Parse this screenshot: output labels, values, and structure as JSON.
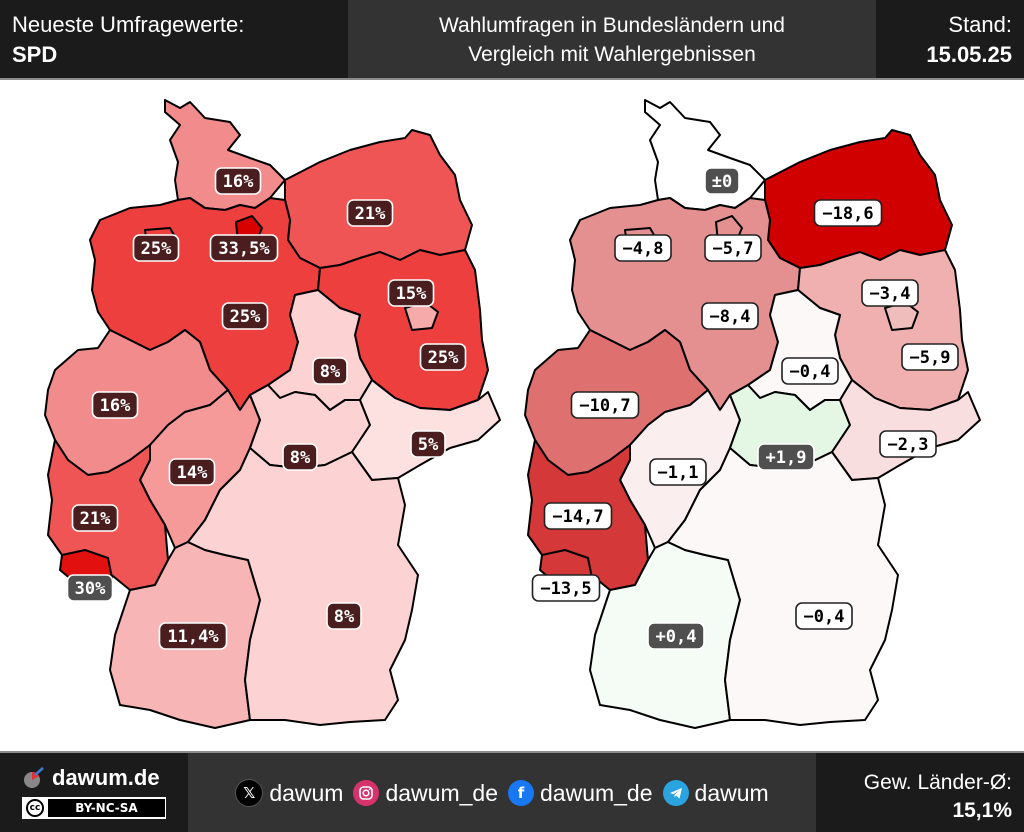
{
  "header": {
    "left_line1": "Neueste Umfragewerte:",
    "left_line2": "SPD",
    "title_line1": "Wahlumfragen in Bundesländern und",
    "title_line2": "Vergleich mit Wahlergebnissen",
    "right_line1": "Stand:",
    "right_line2": "15.05.25"
  },
  "map_left": {
    "labels": [
      {
        "state": "Schleswig-Holstein",
        "text": "16%",
        "style": "dark"
      },
      {
        "state": "Mecklenburg-Vorpommern",
        "text": "21%",
        "style": "dark"
      },
      {
        "state": "Bremen",
        "text": "25%",
        "style": "dark"
      },
      {
        "state": "Hamburg",
        "text": "33,5%",
        "style": "dark"
      },
      {
        "state": "Niedersachsen",
        "text": "25%",
        "style": "dark"
      },
      {
        "state": "Berlin",
        "text": "15%",
        "style": "dark"
      },
      {
        "state": "Brandenburg",
        "text": "25%",
        "style": "dark"
      },
      {
        "state": "Sachsen-Anhalt",
        "text": "8%",
        "style": "dark"
      },
      {
        "state": "Nordrhein-Westfalen",
        "text": "16%",
        "style": "dark"
      },
      {
        "state": "Thüringen",
        "text": "8%",
        "style": "dark"
      },
      {
        "state": "Sachsen",
        "text": "5%",
        "style": "dark"
      },
      {
        "state": "Hessen",
        "text": "14%",
        "style": "dark"
      },
      {
        "state": "Rheinland-Pfalz",
        "text": "21%",
        "style": "dark"
      },
      {
        "state": "Saarland",
        "text": "30%",
        "style": "grey"
      },
      {
        "state": "Bayern",
        "text": "8%",
        "style": "dark"
      },
      {
        "state": "Baden-Württemberg",
        "text": "11,4%",
        "style": "dark"
      }
    ],
    "fills": {
      "Schleswig-Holstein": "#f28b8b",
      "Hamburg": "#d90000",
      "Mecklenburg-Vorpommern": "#f05555",
      "Niedersachsen": "#ee3f3f",
      "Bremen": "#ee3f3f",
      "Berlin": "#f6aaaa",
      "Brandenburg": "#ee3f3f",
      "Sachsen-Anhalt": "#fcd2d2",
      "Nordrhein-Westfalen": "#f28b8b",
      "Hessen": "#f59999",
      "Thüringen": "#fcd2d2",
      "Sachsen": "#fde1e1",
      "Rheinland-Pfalz": "#f05555",
      "Saarland": "#e31010",
      "Baden-Württemberg": "#f8b5b5",
      "Bayern": "#fcd2d2"
    }
  },
  "map_right": {
    "labels": [
      {
        "state": "Schleswig-Holstein",
        "text": "±0",
        "style": "grey"
      },
      {
        "state": "Mecklenburg-Vorpommern",
        "text": "−18,6",
        "style": "light"
      },
      {
        "state": "Bremen",
        "text": "−4,8",
        "style": "light"
      },
      {
        "state": "Hamburg",
        "text": "−5,7",
        "style": "light"
      },
      {
        "state": "Niedersachsen",
        "text": "−8,4",
        "style": "light"
      },
      {
        "state": "Berlin",
        "text": "−3,4",
        "style": "light"
      },
      {
        "state": "Brandenburg",
        "text": "−5,9",
        "style": "light"
      },
      {
        "state": "Sachsen-Anhalt",
        "text": "−0,4",
        "style": "light"
      },
      {
        "state": "Nordrhein-Westfalen",
        "text": "−10,7",
        "style": "light"
      },
      {
        "state": "Thüringen",
        "text": "+1,9",
        "style": "grey"
      },
      {
        "state": "Sachsen",
        "text": "−2,3",
        "style": "light"
      },
      {
        "state": "Hessen",
        "text": "−1,1",
        "style": "light"
      },
      {
        "state": "Rheinland-Pfalz",
        "text": "−14,7",
        "style": "light"
      },
      {
        "state": "Saarland",
        "text": "−13,5",
        "style": "light"
      },
      {
        "state": "Bayern",
        "text": "−0,4",
        "style": "light"
      },
      {
        "state": "Baden-Württemberg",
        "text": "+0,4",
        "style": "grey"
      }
    ],
    "fills": {
      "Schleswig-Holstein": "#ffffff",
      "Hamburg": "#e59090",
      "Mecklenburg-Vorpommern": "#d00000",
      "Niedersachsen": "#e59090",
      "Bremen": "#e59090",
      "Berlin": "#f0bdbd",
      "Brandenburg": "#f0b0b0",
      "Sachsen-Anhalt": "#fdf8f8",
      "Nordrhein-Westfalen": "#de7070",
      "Hessen": "#fbeeee",
      "Thüringen": "#e4f7e4",
      "Sachsen": "#f8dede",
      "Rheinland-Pfalz": "#d43838",
      "Saarland": "#d43838",
      "Baden-Württemberg": "#f5fbf5",
      "Bayern": "#fdf8f8"
    }
  },
  "footer": {
    "brand": "dawum.de",
    "license": "BY-NC-SA",
    "license_badge": "cc",
    "social": [
      {
        "icon": "x-icon",
        "handle": "dawum",
        "color": "#000000"
      },
      {
        "icon": "instagram-icon",
        "handle": "dawum_de",
        "color": "#d6336c"
      },
      {
        "icon": "facebook-icon",
        "handle": "dawum_de",
        "color": "#1877f2"
      },
      {
        "icon": "telegram-icon",
        "handle": "dawum",
        "color": "#2aa3df"
      }
    ],
    "avg_label": "Gew. Länder-Ø:",
    "avg_value": "15,1%"
  }
}
